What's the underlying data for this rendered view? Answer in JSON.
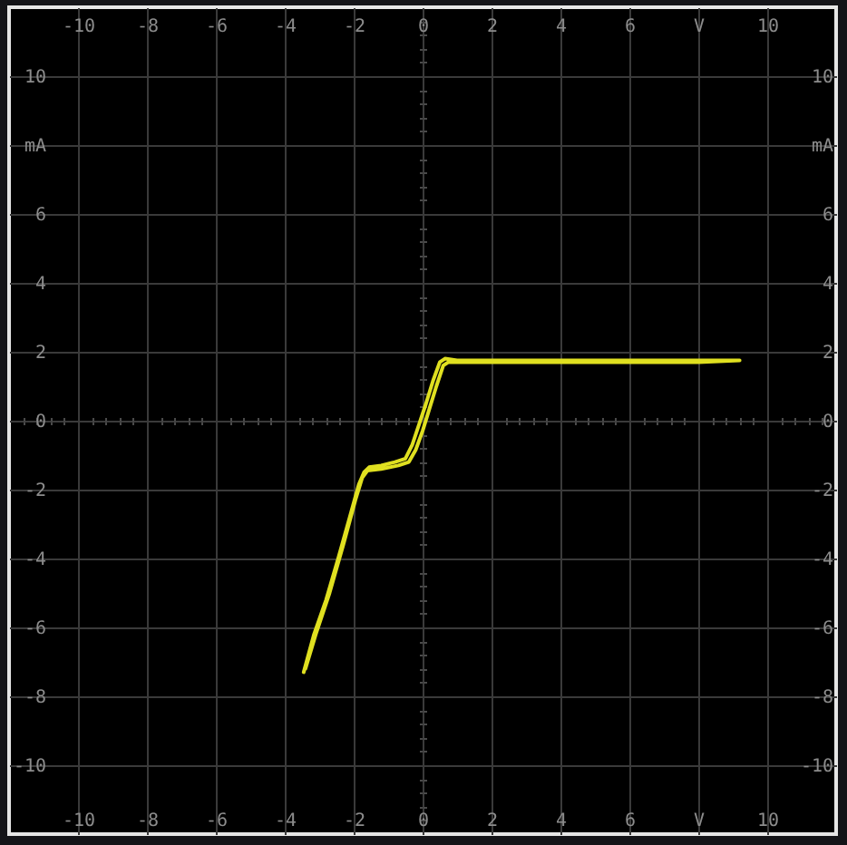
{
  "chart_data": {
    "type": "line",
    "xlim": [
      -12,
      12
    ],
    "ylim": [
      -12,
      12
    ],
    "xticks": [
      -10,
      -8,
      -6,
      -4,
      -2,
      0,
      2,
      4,
      6,
      {
        "value": 8,
        "label": "V"
      },
      10,
      {
        "value": -11.6,
        "label": null
      },
      {
        "value": -11.2,
        "label": null
      },
      {
        "value": -10.8,
        "label": null
      },
      {
        "value": -10.4,
        "label": null
      },
      {
        "value": -9.6,
        "label": null
      },
      {
        "value": -9.2,
        "label": null
      },
      {
        "value": -8.8,
        "label": null
      },
      {
        "value": -8.4,
        "label": null
      },
      {
        "value": -7.6,
        "label": null
      },
      {
        "value": -7.2,
        "label": null
      },
      {
        "value": -6.8,
        "label": null
      },
      {
        "value": -6.4,
        "label": null
      },
      {
        "value": -5.6,
        "label": null
      },
      {
        "value": -5.2,
        "label": null
      },
      {
        "value": -4.8,
        "label": null
      },
      {
        "value": -4.4,
        "label": null
      },
      {
        "value": -3.6,
        "label": null
      },
      {
        "value": -3.2,
        "label": null
      },
      {
        "value": -2.8,
        "label": null
      },
      {
        "value": -2.4,
        "label": null
      },
      {
        "value": -1.6,
        "label": null
      },
      {
        "value": -1.2,
        "label": null
      },
      {
        "value": -0.8,
        "label": null
      },
      {
        "value": -0.4,
        "label": null
      },
      {
        "value": 0.4,
        "label": null
      },
      {
        "value": 0.8,
        "label": null
      },
      {
        "value": 1.2,
        "label": null
      },
      {
        "value": 1.6,
        "label": null
      },
      {
        "value": 2.4,
        "label": null
      },
      {
        "value": 2.8,
        "label": null
      },
      {
        "value": 3.2,
        "label": null
      },
      {
        "value": 3.6,
        "label": null
      },
      {
        "value": 4.4,
        "label": null
      },
      {
        "value": 4.8,
        "label": null
      },
      {
        "value": 5.2,
        "label": null
      },
      {
        "value": 5.6,
        "label": null
      },
      {
        "value": 6.4,
        "label": null
      },
      {
        "value": 6.8,
        "label": null
      },
      {
        "value": 7.2,
        "label": null
      },
      {
        "value": 7.6,
        "label": null
      },
      {
        "value": 8.4,
        "label": null
      },
      {
        "value": 8.8,
        "label": null
      },
      {
        "value": 9.2,
        "label": null
      },
      {
        "value": 9.6,
        "label": null
      },
      {
        "value": 10.4,
        "label": null
      },
      {
        "value": 10.8,
        "label": null
      },
      {
        "value": 11.2,
        "label": null
      },
      {
        "value": 11.6,
        "label": null
      }
    ],
    "yticks": [
      -10,
      -8,
      -6,
      -4,
      -2,
      0,
      2,
      4,
      6,
      {
        "value": 8,
        "label": "mA"
      },
      10,
      {
        "value": -11.6,
        "label": null
      },
      {
        "value": -11.2,
        "label": null
      },
      {
        "value": -10.8,
        "label": null
      },
      {
        "value": -10.4,
        "label": null
      },
      {
        "value": -9.6,
        "label": null
      },
      {
        "value": -9.2,
        "label": null
      },
      {
        "value": -8.8,
        "label": null
      },
      {
        "value": -8.4,
        "label": null
      },
      {
        "value": -7.6,
        "label": null
      },
      {
        "value": -7.2,
        "label": null
      },
      {
        "value": -6.8,
        "label": null
      },
      {
        "value": -6.4,
        "label": null
      },
      {
        "value": -5.6,
        "label": null
      },
      {
        "value": -5.2,
        "label": null
      },
      {
        "value": -4.8,
        "label": null
      },
      {
        "value": -4.4,
        "label": null
      },
      {
        "value": -3.6,
        "label": null
      },
      {
        "value": -3.2,
        "label": null
      },
      {
        "value": -2.8,
        "label": null
      },
      {
        "value": -2.4,
        "label": null
      },
      {
        "value": -1.6,
        "label": null
      },
      {
        "value": -1.2,
        "label": null
      },
      {
        "value": -0.8,
        "label": null
      },
      {
        "value": -0.4,
        "label": null
      },
      {
        "value": 0.4,
        "label": null
      },
      {
        "value": 0.8,
        "label": null
      },
      {
        "value": 1.2,
        "label": null
      },
      {
        "value": 1.6,
        "label": null
      },
      {
        "value": 2.4,
        "label": null
      },
      {
        "value": 2.8,
        "label": null
      },
      {
        "value": 3.2,
        "label": null
      },
      {
        "value": 3.6,
        "label": null
      },
      {
        "value": 4.4,
        "label": null
      },
      {
        "value": 4.8,
        "label": null
      },
      {
        "value": 5.2,
        "label": null
      },
      {
        "value": 5.6,
        "label": null
      },
      {
        "value": 6.4,
        "label": null
      },
      {
        "value": 6.8,
        "label": null
      },
      {
        "value": 7.2,
        "label": null
      },
      {
        "value": 7.6,
        "label": null
      },
      {
        "value": 8.4,
        "label": null
      },
      {
        "value": 8.8,
        "label": null
      },
      {
        "value": 9.2,
        "label": null
      },
      {
        "value": 9.6,
        "label": null
      },
      {
        "value": 10.4,
        "label": null
      },
      {
        "value": 10.8,
        "label": null
      },
      {
        "value": 11.2,
        "label": null
      },
      {
        "value": 11.6,
        "label": null
      }
    ],
    "x2lim": [
      -12,
      12
    ],
    "x2ticks": [
      -10,
      -8,
      -6,
      -4,
      -2,
      0,
      2,
      4,
      6,
      {
        "value": 8,
        "label": "V"
      },
      10
    ],
    "y2lim": [
      -12,
      12
    ],
    "y2ticks": [
      -10,
      -8,
      -6,
      -4,
      -2,
      0,
      2,
      4,
      6,
      {
        "value": 8,
        "label": "mA"
      },
      10
    ],
    "grid": true,
    "marker": "none",
    "line_style": "solid",
    "series": [
      {
        "color": "#e0e020",
        "x": [
          -3.45,
          -3.15,
          -2.8,
          -2.45,
          -2.1,
          -1.85,
          -1.7,
          -1.55,
          -1.2,
          -0.8,
          -0.5,
          -0.3,
          -0.1,
          0.1,
          0.3,
          0.5,
          0.65,
          1,
          3,
          5,
          7,
          9.2,
          8,
          6,
          4,
          2,
          0.75,
          0.6,
          0.4,
          0.2,
          0,
          -0.2,
          -0.4,
          -0.7,
          -1.2,
          -1.6,
          -1.75,
          -1.95,
          -2.3,
          -2.7,
          -3.1,
          -3.4
        ],
        "values": [
          -7.3,
          -6.2,
          -5.2,
          -4,
          -2.75,
          -1.85,
          -1.5,
          -1.35,
          -1.3,
          -1.2,
          -1.1,
          -0.7,
          -0.1,
          0.5,
          1.15,
          1.7,
          1.8,
          1.75,
          1.75,
          1.75,
          1.75,
          1.75,
          1.7,
          1.7,
          1.7,
          1.7,
          1.7,
          1.6,
          1,
          0.35,
          -0.3,
          -0.85,
          -1.2,
          -1.3,
          -1.4,
          -1.45,
          -1.65,
          -2.3,
          -3.6,
          -5,
          -6.2,
          -7.2
        ]
      }
    ]
  }
}
